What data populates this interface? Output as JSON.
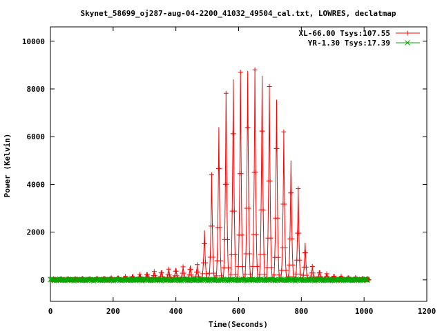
{
  "chart_data": {
    "type": "line",
    "title": "Skynet_58699_oj287-aug-04-2200_41032_49504_cal.txt, LOWRES, declatmap",
    "xlabel": "Time(Seconds)",
    "ylabel": "Power (Kelvin)",
    "xlim": [
      0,
      1200
    ],
    "ylim": [
      -900,
      10600
    ],
    "x_ticks": [
      0,
      200,
      400,
      600,
      800,
      1000,
      1200
    ],
    "y_ticks": [
      0,
      2000,
      4000,
      6000,
      8000,
      10000
    ],
    "grid": false,
    "legend_position": "top-right",
    "series": [
      {
        "name": "XL-66.00 Tsys:107.55",
        "color": "#ff0000",
        "marker": "plus",
        "baseline": 0,
        "sweep_peaks": [
          [
            10,
            50
          ],
          [
            33,
            50
          ],
          [
            56,
            55
          ],
          [
            79,
            60
          ],
          [
            102,
            60
          ],
          [
            125,
            60
          ],
          [
            148,
            70
          ],
          [
            171,
            80
          ],
          [
            194,
            90
          ],
          [
            216,
            110
          ],
          [
            239,
            140
          ],
          [
            262,
            180
          ],
          [
            285,
            230
          ],
          [
            308,
            300
          ],
          [
            331,
            350
          ],
          [
            354,
            400
          ],
          [
            377,
            450
          ],
          [
            400,
            500
          ],
          [
            423,
            550
          ],
          [
            446,
            600
          ],
          [
            468,
            640
          ],
          [
            491,
            2080
          ],
          [
            514,
            4400
          ],
          [
            537,
            6400
          ],
          [
            560,
            7820
          ],
          [
            583,
            8400
          ],
          [
            606,
            8700
          ],
          [
            629,
            8750
          ],
          [
            652,
            8800
          ],
          [
            675,
            8550
          ],
          [
            698,
            8100
          ],
          [
            721,
            7550
          ],
          [
            744,
            6200
          ],
          [
            767,
            5000
          ],
          [
            790,
            3820
          ],
          [
            812,
            1560
          ],
          [
            835,
            560
          ],
          [
            858,
            400
          ],
          [
            881,
            260
          ],
          [
            904,
            200
          ],
          [
            927,
            150
          ],
          [
            950,
            120
          ],
          [
            973,
            100
          ],
          [
            996,
            80
          ],
          [
            1010,
            60
          ]
        ]
      },
      {
        "name": "YR-1.30 Tsys:17.39",
        "color": "#00aa00",
        "marker": "cross",
        "baseline": 0,
        "x_range": [
          0,
          1012
        ],
        "amplitude": 40
      }
    ]
  }
}
